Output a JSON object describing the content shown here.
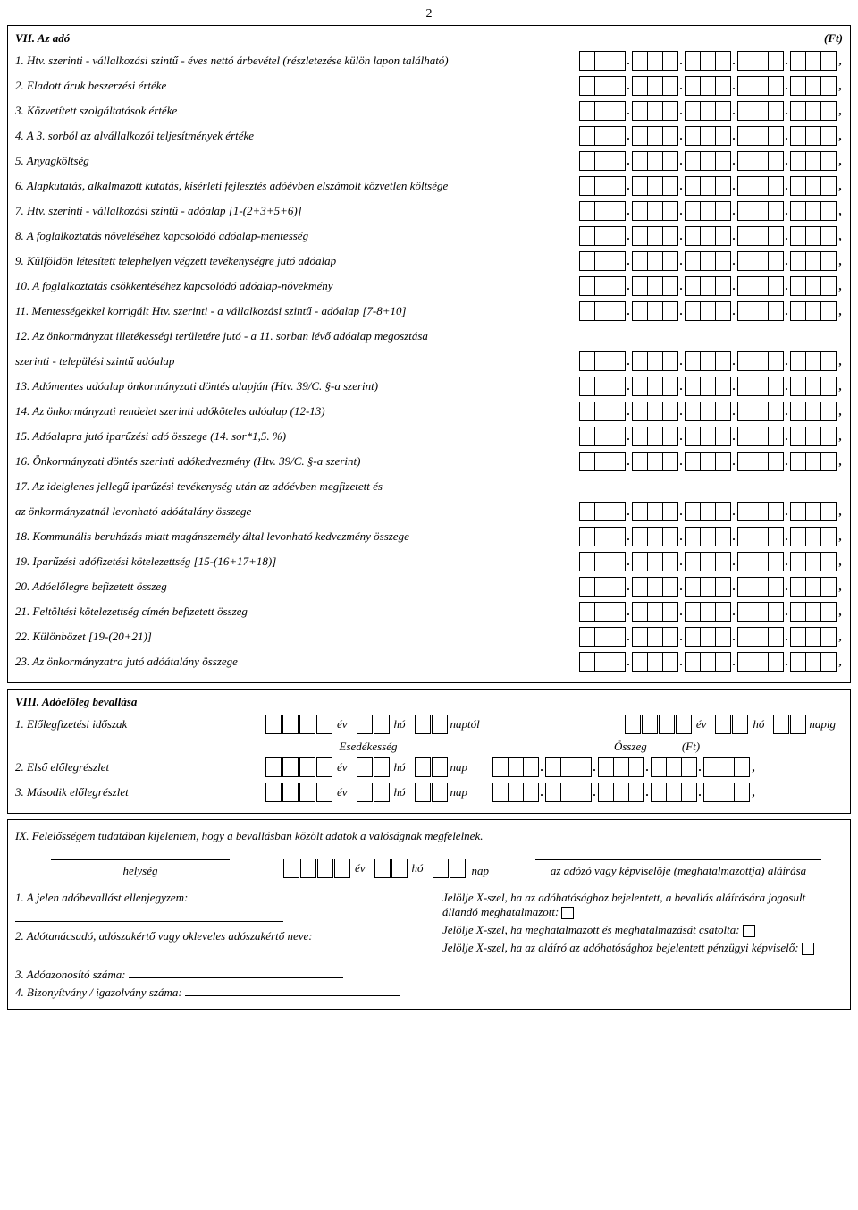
{
  "page_number": "2",
  "vii": {
    "title": "VII. Az adó",
    "unit": "(Ft)",
    "lines": [
      "1. Htv. szerinti - vállalkozási szintű - éves nettó árbevétel (részletezése külön lapon található)",
      "2. Eladott áruk beszerzési értéke",
      "3. Közvetített szolgáltatások értéke",
      "4. A 3. sorból az alvállalkozói teljesítmények értéke",
      "5. Anyagköltség",
      "6. Alapkutatás, alkalmazott kutatás, kísérleti fejlesztés adóévben elszámolt közvetlen költsége",
      "7. Htv. szerinti - vállalkozási szintű - adóalap [1-(2+3+5+6)]",
      "8. A foglalkoztatás növeléséhez kapcsolódó adóalap-mentesség",
      "9. Külföldön létesített telephelyen végzett tevékenységre jutó adóalap",
      "10. A foglalkoztatás csökkentéséhez kapcsolódó adóalap-növekmény",
      "11. Mentességekkel korrigált Htv. szerinti - a vállalkozási szintű - adóalap [7-8+10]",
      "12. Az önkormányzat illetékességi területére jutó - a 11. sorban lévő adóalap megosztása",
      "szerinti - települési szintű adóalap",
      "13. Adómentes adóalap önkormányzati döntés alapján (Htv. 39/C. §-a szerint)",
      "14. Az önkormányzati rendelet szerinti adóköteles adóalap (12-13)",
      "15. Adóalapra jutó iparűzési adó összege (14. sor*1,5. %)",
      "16. Önkormányzati döntés szerinti adókedvezmény (Htv. 39/C. §-a szerint)",
      "17. Az ideiglenes jellegű iparűzési tevékenység után az adóévben megfizetett és",
      "az önkormányzatnál levonható adóátalány összege",
      "18. Kommunális beruházás miatt magánszemély által levonható kedvezmény összege",
      "19. Iparűzési adófizetési kötelezettség [15-(16+17+18)]",
      "20. Adóelőlegre befizetett összeg",
      "21. Feltöltési kötelezettség címén befizetett összeg",
      "22. Különbözet [19-(20+21)]",
      "23. Az önkormányzatra jutó adóátalány összege"
    ],
    "no_boxes": [
      11,
      17
    ]
  },
  "viii": {
    "title": "VIII. Adóelőleg bevallása",
    "line1_label": "1. Előlegfizetési időszak",
    "ev": "év",
    "ho": "hó",
    "naptol": "naptól",
    "napig": "napig",
    "esed": "Esedékesség",
    "osszeg": "Összeg",
    "ft": "(Ft)",
    "line2_label": "2. Első előlegrészlet",
    "line3_label": "3. Második előlegrészlet",
    "nap": "nap"
  },
  "ix": {
    "intro": "IX. Felelősségem tudatában kijelentem, hogy a bevallásban közölt adatok a valóságnak megfelelnek.",
    "helyseg": "helység",
    "ev": "év",
    "ho": "hó",
    "nap": "nap",
    "sig_right": "az adózó vagy képviselője (meghatalmazottja) aláírása",
    "l1": "1. A jelen adóbevallást ellenjegyzem:",
    "l2": "2. Adótanácsadó, adószakértő vagy okleveles adószakértő neve:",
    "l3": "3. Adóazonosító száma:",
    "l4": "4. Bizonyítvány / igazolvány száma:",
    "r1": "Jelölje X-szel, ha az adóhatósághoz bejelentett, a bevallás aláírására jogosult állandó meghatalmazott:",
    "r2": "Jelölje X-szel, ha meghatalmazott és meghatalmazását csatolta:",
    "r3": "Jelölje X-szel, ha az aláíró az adóhatósághoz bejelentett pénzügyi képviselő:"
  }
}
